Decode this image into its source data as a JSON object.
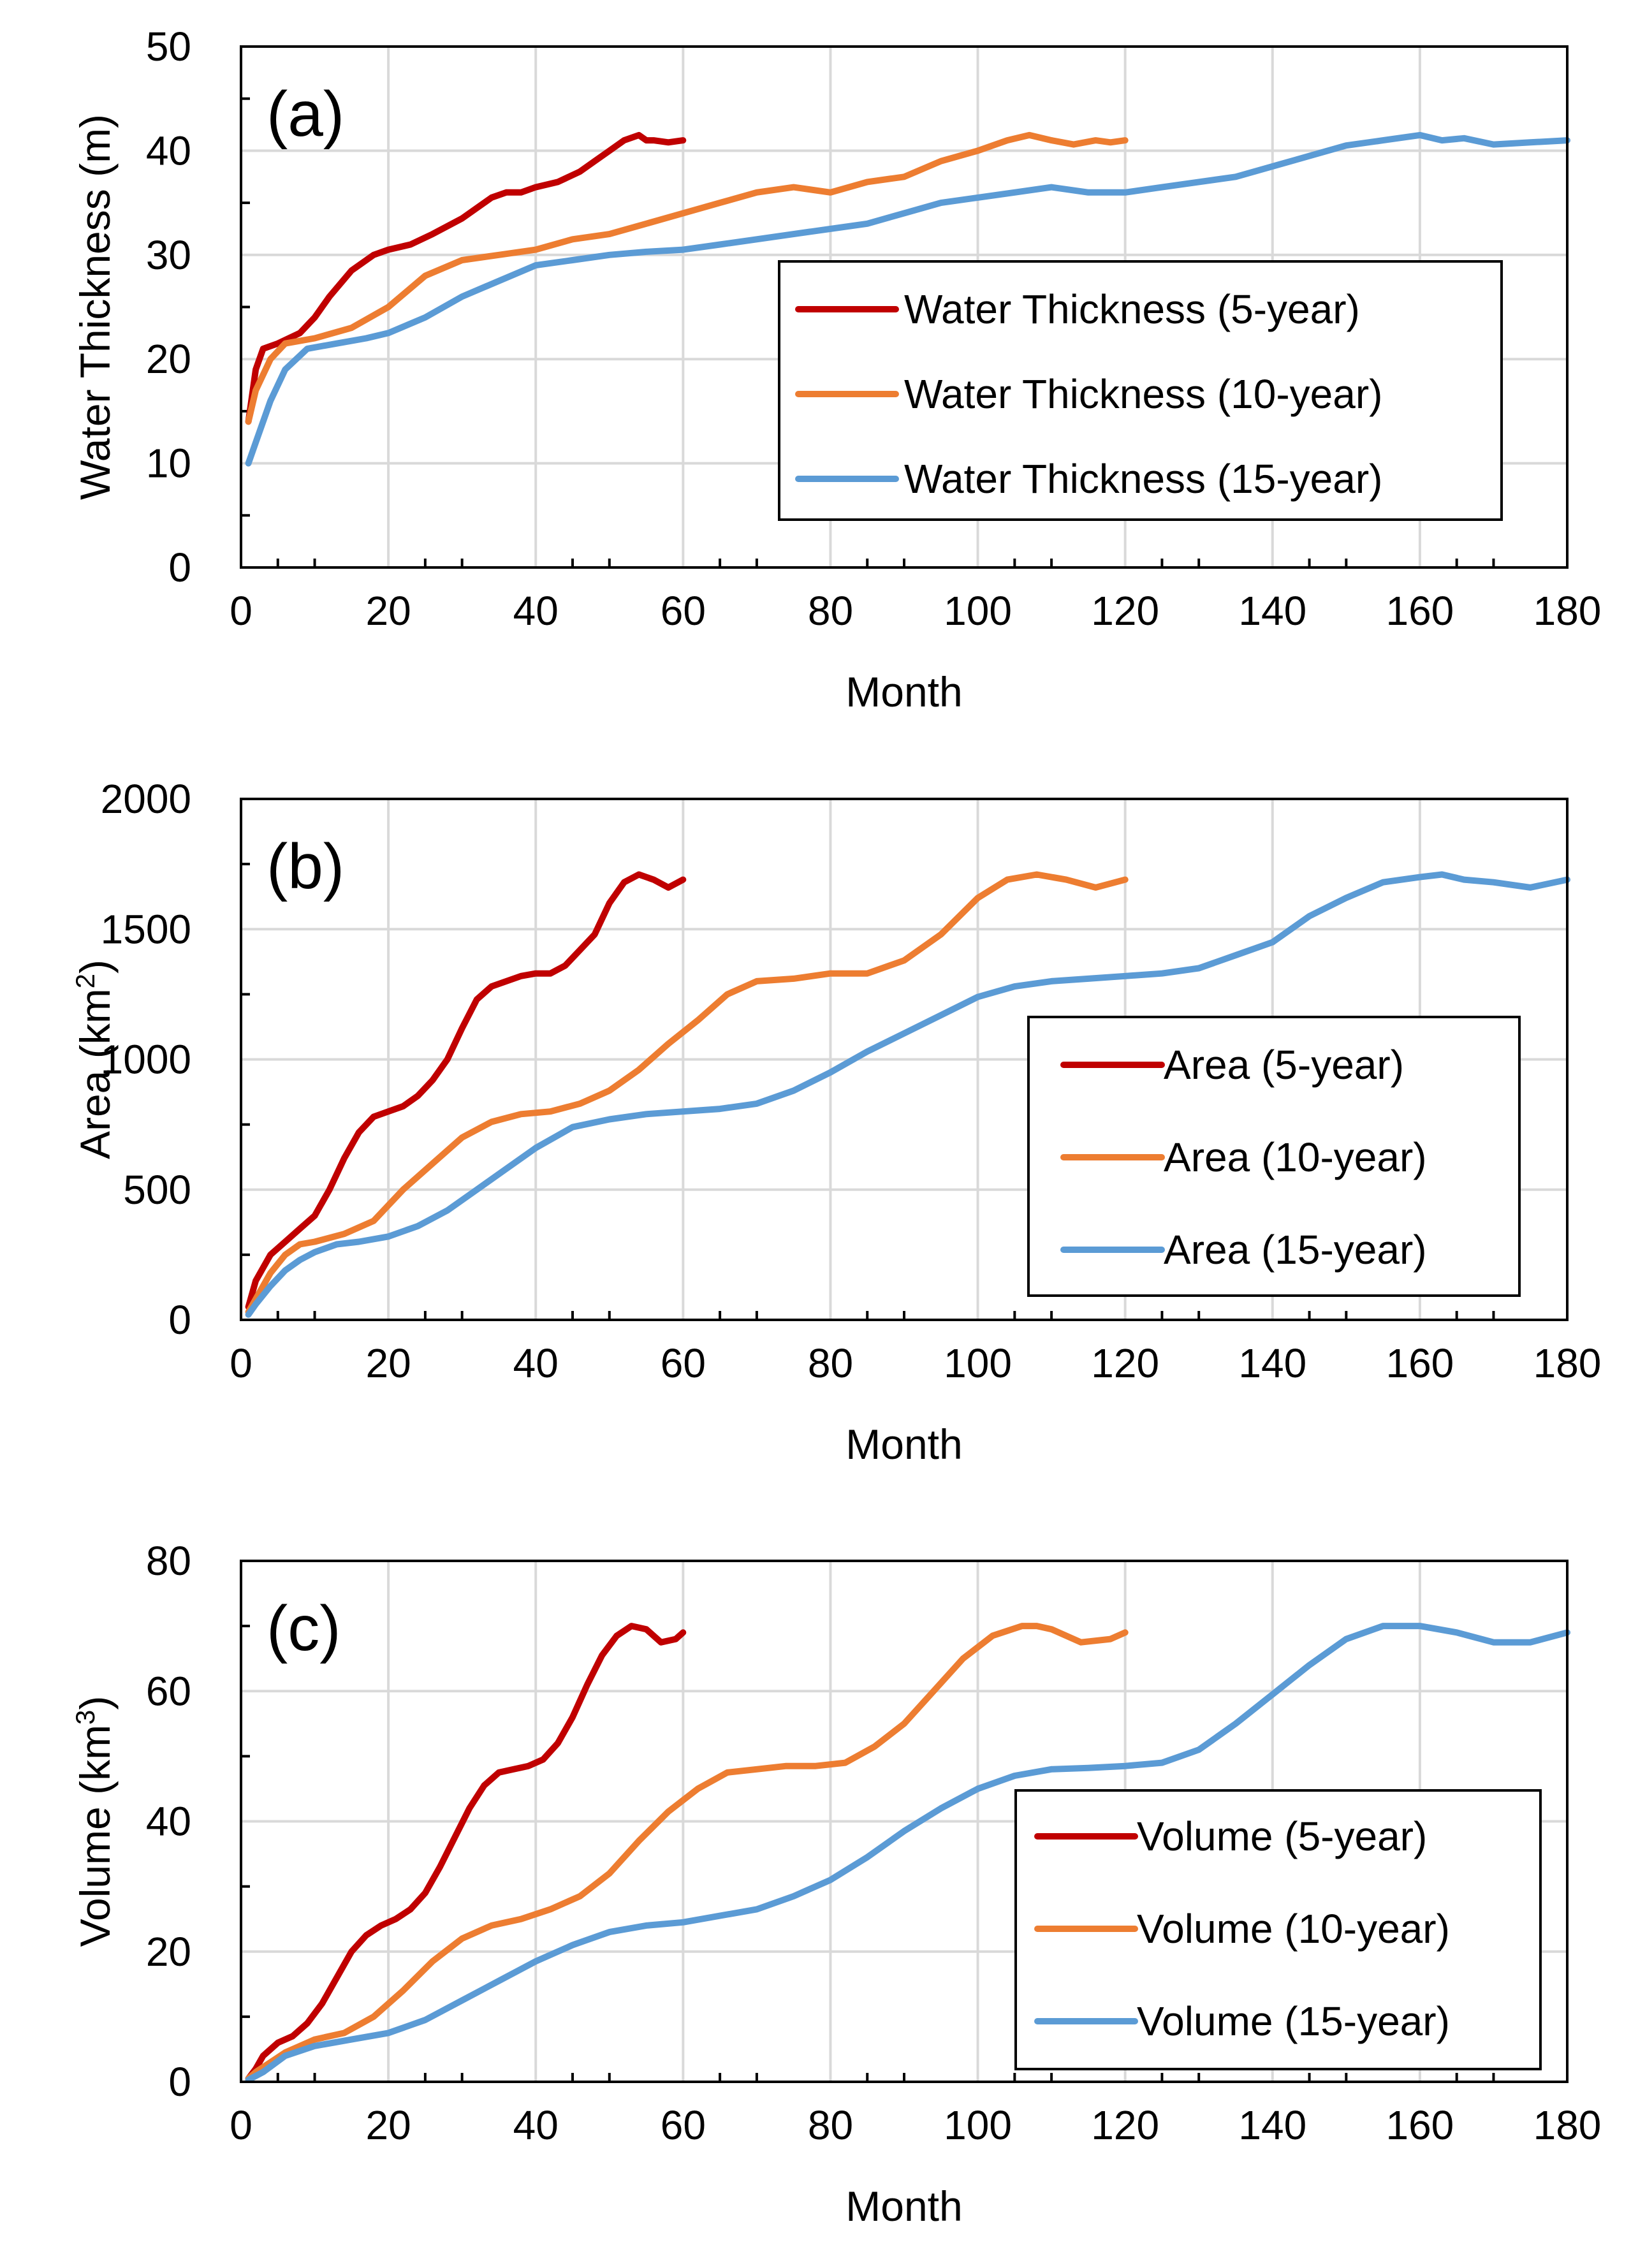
{
  "colors": {
    "five_year": "#C00000",
    "ten_year": "#ED7D31",
    "fifteen_year": "#5B9BD5"
  },
  "chart_data": [
    {
      "type": "line",
      "panel_label": "(a)",
      "xlabel": "Month",
      "ylabel": "Water Thickness (m)",
      "xlim": [
        0,
        180
      ],
      "ylim": [
        0,
        50
      ],
      "xticks": [
        "0",
        "20",
        "40",
        "60",
        "80",
        "100",
        "120",
        "140",
        "160",
        "180"
      ],
      "yticks": [
        "0",
        "10",
        "20",
        "30",
        "40",
        "50"
      ],
      "grid": true,
      "legend_position": "center-right",
      "series": [
        {
          "name": "Water Thickness (5-year)",
          "color": "#C00000",
          "x": [
            1,
            2,
            3,
            5,
            8,
            10,
            12,
            15,
            18,
            20,
            23,
            26,
            30,
            34,
            36,
            38,
            40,
            43,
            46,
            48,
            50,
            52,
            54,
            55,
            56,
            58,
            60
          ],
          "y": [
            14,
            19,
            21,
            21.5,
            22.5,
            24,
            26,
            28.5,
            30,
            30.5,
            31,
            32,
            33.5,
            35.5,
            36,
            36,
            36.5,
            37,
            38,
            39,
            40,
            41,
            41.5,
            41,
            41,
            40.8,
            41
          ]
        },
        {
          "name": "Water Thickness (10-year)",
          "color": "#ED7D31",
          "x": [
            1,
            2,
            4,
            6,
            10,
            15,
            20,
            25,
            30,
            35,
            40,
            45,
            50,
            55,
            60,
            65,
            70,
            75,
            80,
            85,
            90,
            95,
            100,
            104,
            107,
            110,
            113,
            116,
            118,
            120
          ],
          "y": [
            14,
            17,
            20,
            21.5,
            22,
            23,
            25,
            28,
            29.5,
            30,
            30.5,
            31.5,
            32,
            33,
            34,
            35,
            36,
            36.5,
            36,
            37,
            37.5,
            39,
            40,
            41,
            41.5,
            41,
            40.6,
            41,
            40.8,
            41
          ]
        },
        {
          "name": "Water Thickness (15-year)",
          "color": "#5B9BD5",
          "x": [
            1,
            2,
            4,
            6,
            9,
            13,
            17,
            20,
            25,
            30,
            35,
            40,
            45,
            50,
            55,
            60,
            65,
            70,
            75,
            80,
            85,
            90,
            95,
            100,
            105,
            110,
            115,
            120,
            125,
            130,
            135,
            140,
            145,
            150,
            155,
            160,
            163,
            166,
            170,
            175,
            180
          ],
          "y": [
            10,
            12,
            16,
            19,
            21,
            21.5,
            22,
            22.5,
            24,
            26,
            27.5,
            29,
            29.5,
            30,
            30.3,
            30.5,
            31,
            31.5,
            32,
            32.5,
            33,
            34,
            35,
            35.5,
            36,
            36.5,
            36,
            36,
            36.5,
            37,
            37.5,
            38.5,
            39.5,
            40.5,
            41,
            41.5,
            41,
            41.2,
            40.6,
            40.8,
            41
          ]
        }
      ]
    },
    {
      "type": "line",
      "panel_label": "(b)",
      "xlabel": "Month",
      "ylabel_main": "Area (km",
      "ylabel_sup": "2",
      "ylabel_end": ")",
      "xlim": [
        0,
        180
      ],
      "ylim": [
        0,
        2000
      ],
      "xticks": [
        "0",
        "20",
        "40",
        "60",
        "80",
        "100",
        "120",
        "140",
        "160",
        "180"
      ],
      "yticks": [
        "0",
        "500",
        "1000",
        "1500",
        "2000"
      ],
      "grid": true,
      "legend_position": "center-right",
      "series": [
        {
          "name": "Area (5-year)",
          "color": "#C00000",
          "x": [
            1,
            2,
            4,
            6,
            8,
            10,
            12,
            14,
            16,
            18,
            20,
            22,
            24,
            26,
            28,
            30,
            32,
            34,
            36,
            38,
            40,
            42,
            44,
            46,
            48,
            50,
            52,
            54,
            56,
            58,
            60
          ],
          "y": [
            50,
            150,
            250,
            300,
            350,
            400,
            500,
            620,
            720,
            780,
            800,
            820,
            860,
            920,
            1000,
            1120,
            1230,
            1280,
            1300,
            1320,
            1330,
            1330,
            1360,
            1420,
            1480,
            1600,
            1680,
            1710,
            1690,
            1660,
            1690
          ]
        },
        {
          "name": "Area (10-year)",
          "color": "#ED7D31",
          "x": [
            1,
            2,
            4,
            6,
            8,
            10,
            14,
            18,
            22,
            26,
            30,
            34,
            38,
            42,
            46,
            50,
            54,
            58,
            62,
            66,
            70,
            75,
            80,
            85,
            90,
            95,
            100,
            104,
            108,
            112,
            116,
            120
          ],
          "y": [
            30,
            80,
            180,
            250,
            290,
            300,
            330,
            380,
            500,
            600,
            700,
            760,
            790,
            800,
            830,
            880,
            960,
            1060,
            1150,
            1250,
            1300,
            1310,
            1330,
            1330,
            1380,
            1480,
            1620,
            1690,
            1710,
            1690,
            1660,
            1690
          ]
        },
        {
          "name": "Area (15-year)",
          "color": "#5B9BD5",
          "x": [
            1,
            2,
            4,
            6,
            8,
            10,
            13,
            16,
            20,
            24,
            28,
            32,
            36,
            40,
            45,
            50,
            55,
            60,
            65,
            70,
            75,
            80,
            85,
            90,
            95,
            100,
            105,
            110,
            115,
            120,
            125,
            130,
            135,
            140,
            145,
            150,
            155,
            160,
            163,
            166,
            170,
            175,
            180
          ],
          "y": [
            20,
            60,
            130,
            190,
            230,
            260,
            290,
            300,
            320,
            360,
            420,
            500,
            580,
            660,
            740,
            770,
            790,
            800,
            810,
            830,
            880,
            950,
            1030,
            1100,
            1170,
            1240,
            1280,
            1300,
            1310,
            1320,
            1330,
            1350,
            1400,
            1450,
            1550,
            1620,
            1680,
            1700,
            1710,
            1690,
            1680,
            1660,
            1690
          ]
        }
      ]
    },
    {
      "type": "line",
      "panel_label": "(c)",
      "xlabel": "Month",
      "ylabel_main": "Volume (km",
      "ylabel_sup": "3",
      "ylabel_end": ")",
      "xlim": [
        0,
        180
      ],
      "ylim": [
        0,
        80
      ],
      "xticks": [
        "0",
        "20",
        "40",
        "60",
        "80",
        "100",
        "120",
        "140",
        "160",
        "180"
      ],
      "yticks": [
        "0",
        "20",
        "40",
        "60",
        "80"
      ],
      "grid": true,
      "legend_position": "center-right",
      "series": [
        {
          "name": "Volume (5-year)",
          "color": "#C00000",
          "x": [
            1,
            2,
            3,
            5,
            7,
            9,
            11,
            13,
            15,
            17,
            19,
            21,
            23,
            25,
            27,
            29,
            31,
            33,
            35,
            37,
            39,
            41,
            43,
            45,
            47,
            49,
            51,
            53,
            55,
            57,
            59,
            60
          ],
          "y": [
            0.5,
            2,
            4,
            6,
            7,
            9,
            12,
            16,
            20,
            22.5,
            24,
            25,
            26.5,
            29,
            33,
            37.5,
            42,
            45.5,
            47.5,
            48,
            48.5,
            49.5,
            52,
            56,
            61,
            65.5,
            68.5,
            70,
            69.5,
            67.5,
            68,
            69
          ]
        },
        {
          "name": "Volume (10-year)",
          "color": "#ED7D31",
          "x": [
            1,
            2,
            4,
            6,
            8,
            10,
            14,
            18,
            22,
            26,
            30,
            34,
            38,
            42,
            46,
            50,
            54,
            58,
            62,
            66,
            70,
            74,
            78,
            82,
            86,
            90,
            94,
            98,
            102,
            106,
            108,
            110,
            114,
            118,
            120
          ],
          "y": [
            0.5,
            1.5,
            3,
            4.5,
            5.5,
            6.5,
            7.5,
            10,
            14,
            18.5,
            22,
            24,
            25,
            26.5,
            28.5,
            32,
            37,
            41.5,
            45,
            47.5,
            48,
            48.5,
            48.5,
            49,
            51.5,
            55,
            60,
            65,
            68.5,
            70,
            70,
            69.5,
            67.5,
            68,
            69
          ]
        },
        {
          "name": "Volume (15-year)",
          "color": "#5B9BD5",
          "x": [
            1,
            3,
            6,
            10,
            15,
            20,
            25,
            30,
            35,
            40,
            45,
            50,
            55,
            60,
            65,
            70,
            75,
            80,
            85,
            90,
            95,
            100,
            105,
            110,
            115,
            120,
            125,
            130,
            135,
            140,
            145,
            150,
            155,
            160,
            165,
            170,
            175,
            180
          ],
          "y": [
            0.3,
            1.5,
            4,
            5.5,
            6.5,
            7.5,
            9.5,
            12.5,
            15.5,
            18.5,
            21,
            23,
            24,
            24.5,
            25.5,
            26.5,
            28.5,
            31,
            34.5,
            38.5,
            42,
            45,
            47,
            48,
            48.2,
            48.5,
            49,
            51,
            55,
            59.5,
            64,
            68,
            70,
            70,
            69,
            67.5,
            67.5,
            69
          ]
        }
      ]
    }
  ]
}
